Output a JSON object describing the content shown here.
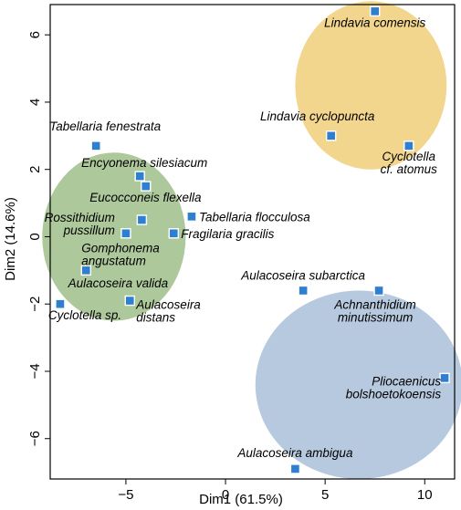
{
  "chart_data": {
    "type": "scatter",
    "xlabel": "Dim1 (61.5%)",
    "ylabel": "Dim2 (14.6%)",
    "xlim": [
      -8.8,
      11.5
    ],
    "ylim": [
      -7.2,
      6.9
    ],
    "x_ticks": [
      -5,
      0,
      5,
      10
    ],
    "y_ticks": [
      -6,
      -4,
      -2,
      0,
      2,
      4,
      6
    ],
    "grid": false,
    "marker_color": "#2e7fd0",
    "clusters": [
      {
        "color": "#9fc08a",
        "cx": -5.6,
        "cy": 0.0,
        "rx": 3.6,
        "ry": 2.5
      },
      {
        "color": "#f0cf79",
        "cx": 7.3,
        "cy": 4.5,
        "rx": 3.8,
        "ry": 2.5
      },
      {
        "color": "#aabfd8",
        "cx": 6.7,
        "cy": -4.4,
        "rx": 5.2,
        "ry": 2.8
      }
    ],
    "points": [
      {
        "x": 7.5,
        "y": 6.7,
        "label": [
          "Lindavia comensis"
        ],
        "anchor": "middle",
        "dx": 0,
        "dy": 17
      },
      {
        "x": 5.3,
        "y": 3.0,
        "label": [
          "Lindavia cyclopuncta"
        ],
        "anchor": "middle",
        "dx": -15,
        "dy": -17
      },
      {
        "x": 9.2,
        "y": 2.7,
        "label": [
          "Cyclotella",
          "cf. atomus"
        ],
        "anchor": "middle",
        "dx": 0,
        "dy": 16
      },
      {
        "x": -6.5,
        "y": 2.7,
        "label": [
          "Tabellaria fenestrata"
        ],
        "anchor": "middle",
        "dx": 10,
        "dy": -17
      },
      {
        "x": -4.3,
        "y": 1.8,
        "label": [
          "Encyonema silesiacum"
        ],
        "anchor": "middle",
        "dx": 5,
        "dy": -10
      },
      {
        "x": -4.0,
        "y": 1.5,
        "label": [],
        "anchor": "middle",
        "dx": 0,
        "dy": 0
      },
      {
        "x": -1.7,
        "y": 0.6,
        "label": [
          "Tabellaria flocculosa"
        ],
        "anchor": "start",
        "dx": 8,
        "dy": 5
      },
      {
        "x": -4.2,
        "y": 0.5,
        "label": [
          "Eucocconeis flexella"
        ],
        "anchor": "middle",
        "dx": 4,
        "dy": -20
      },
      {
        "x": -5.0,
        "y": 0.1,
        "label": [
          "Rossithidium",
          "pussillum"
        ],
        "anchor": "end",
        "dx": -12,
        "dy": -13
      },
      {
        "x": -2.6,
        "y": 0.1,
        "label": [
          "Fragilaria gracilis"
        ],
        "anchor": "start",
        "dx": 8,
        "dy": 5
      },
      {
        "x": -7.0,
        "y": -1.0,
        "label": [
          "Gomphonema",
          "angustatum"
        ],
        "anchor": "start",
        "dx": -5,
        "dy": -20
      },
      {
        "x": -8.3,
        "y": -2.0,
        "label": [
          "Cyclotella sp."
        ],
        "anchor": "start",
        "dx": -13,
        "dy": 17
      },
      {
        "x": -4.8,
        "y": -1.9,
        "label": [
          "Aulacoseira",
          "distans"
        ],
        "anchor": "start",
        "dx": 7,
        "dy": 9
      },
      {
        "x": 3.9,
        "y": -1.6,
        "label": [
          "Aulacoseira subarctica"
        ],
        "anchor": "middle",
        "dx": 0,
        "dy": -12
      },
      {
        "x": 7.7,
        "y": -1.6,
        "label": [
          "Achnanthidium",
          "minutissimum"
        ],
        "anchor": "middle",
        "dx": -4,
        "dy": 20
      },
      {
        "x": 11.0,
        "y": -4.2,
        "label": [
          "Pliocaenicus",
          "bolshoetokoensis"
        ],
        "anchor": "end",
        "dx": -4,
        "dy": 8
      },
      {
        "x": 3.5,
        "y": -6.9,
        "label": [
          "Aulacoseira ambigua"
        ],
        "anchor": "middle",
        "dx": 0,
        "dy": -13
      }
    ],
    "free_labels": [
      {
        "text": "Aulacoseira valida",
        "x": -7.9,
        "y": -1.5
      }
    ]
  }
}
